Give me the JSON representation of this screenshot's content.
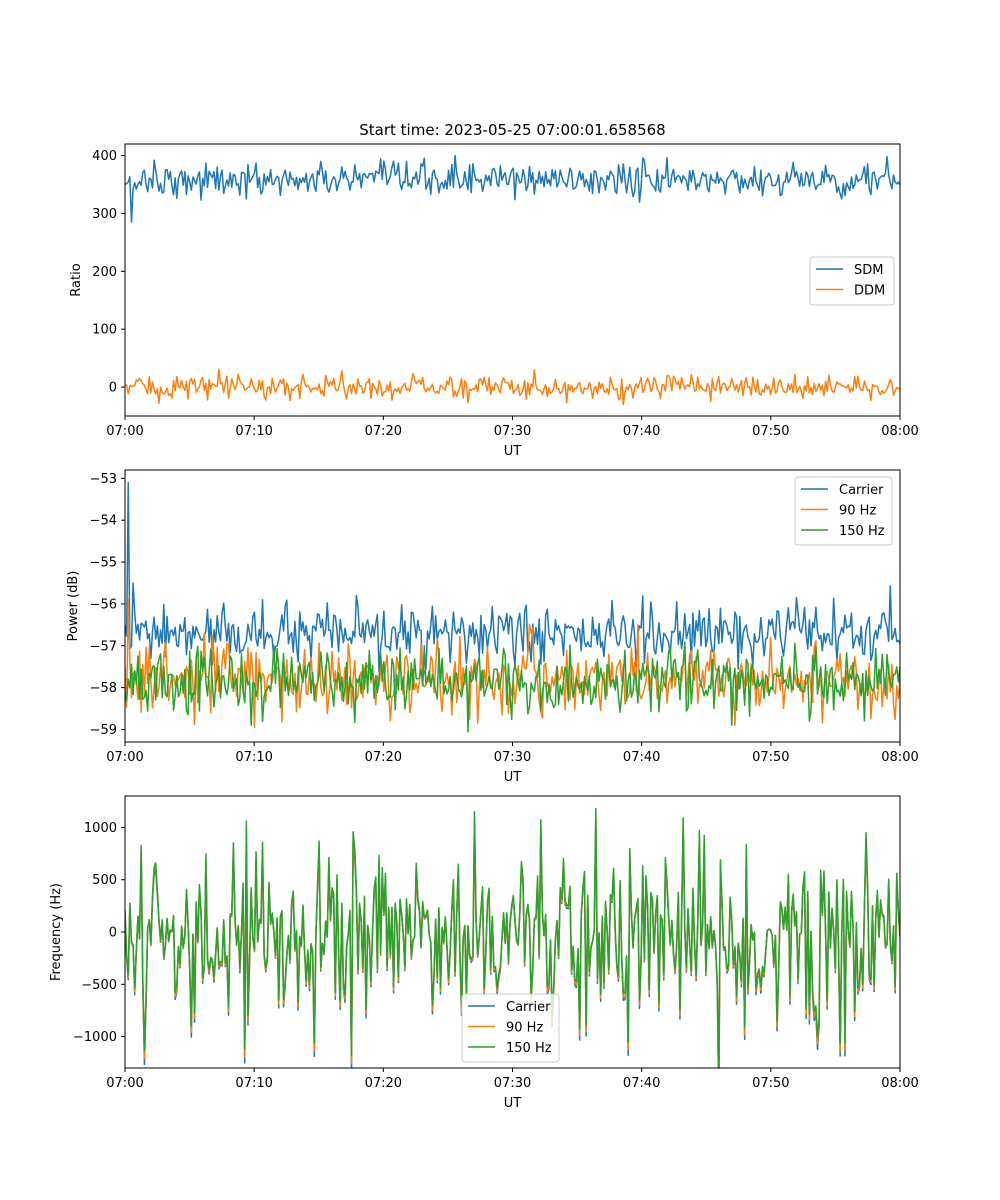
{
  "chart_data": [
    {
      "type": "line",
      "title": "Start time: 2023-05-25 07:00:01.658568",
      "xlabel": "UT",
      "ylabel": "Ratio",
      "xlim": [
        "07:00",
        "08:00"
      ],
      "ylim": [
        -50,
        420
      ],
      "xticks": [
        "07:00",
        "07:10",
        "07:20",
        "07:30",
        "07:40",
        "07:50",
        "08:00"
      ],
      "yticks": [
        0,
        100,
        200,
        300,
        400
      ],
      "ytick_labels": [
        "0",
        "100",
        "200",
        "300",
        "400"
      ],
      "legend_position": "center-right",
      "grid": false,
      "series": [
        {
          "name": "SDM",
          "color": "#1f77b4",
          "spikes": [
            [
              0.0,
              350
            ],
            [
              0.5,
              285
            ]
          ],
          "mean": 358,
          "amp": 14,
          "peaks": [
            [
              2.3,
              392
            ],
            [
              25.5,
              400
            ],
            [
              59.0,
              398
            ],
            [
              9.4,
              325
            ]
          ]
        },
        {
          "name": "DDM",
          "color": "#ff7f0e",
          "spikes": [],
          "mean": 0,
          "amp": 10,
          "peaks": [
            [
              16.8,
              28
            ],
            [
              38.6,
              -30
            ],
            [
              2.6,
              -28
            ]
          ]
        }
      ]
    },
    {
      "type": "line",
      "title": "",
      "xlabel": "UT",
      "ylabel": "Power (dB)",
      "xlim": [
        "07:00",
        "08:00"
      ],
      "ylim": [
        -59.3,
        -52.8
      ],
      "xticks": [
        "07:00",
        "07:10",
        "07:20",
        "07:30",
        "07:40",
        "07:50",
        "08:00"
      ],
      "yticks": [
        -59,
        -58,
        -57,
        -56,
        -55,
        -54,
        -53
      ],
      "ytick_labels": [
        "−59",
        "−58",
        "−57",
        "−56",
        "−55",
        "−54",
        "−53"
      ],
      "legend_position": "upper-right",
      "grid": false,
      "series": [
        {
          "name": "Carrier",
          "color": "#1f77b4",
          "spikes": [
            [
              0.0,
              -56.5
            ],
            [
              0.25,
              -55.0
            ],
            [
              0.3,
              -53.1
            ],
            [
              0.6,
              -55.5
            ],
            [
              0.9,
              -56.7
            ]
          ],
          "mean": -56.75,
          "amp": 0.32,
          "peaks": [
            [
              10.7,
              -55.9
            ],
            [
              52.0,
              -55.85
            ],
            [
              40.7,
              -55.95
            ]
          ]
        },
        {
          "name": "90 Hz",
          "color": "#ff7f0e",
          "spikes": [
            [
              0.0,
              -57.5
            ],
            [
              0.3,
              -55.9
            ],
            [
              0.7,
              -57.6
            ]
          ],
          "mean": -57.8,
          "amp": 0.4,
          "peaks": [
            [
              10.0,
              -58.95
            ],
            [
              27.3,
              -58.85
            ],
            [
              50.0,
              -56.8
            ]
          ]
        },
        {
          "name": "150 Hz",
          "color": "#2ca02c",
          "spikes": [],
          "mean": -57.85,
          "amp": 0.38,
          "peaks": [
            [
              47.0,
              -58.9
            ],
            [
              9.8,
              -58.9
            ]
          ]
        }
      ]
    },
    {
      "type": "line",
      "title": "",
      "xlabel": "UT",
      "ylabel": "Frequency (Hz)",
      "xlim": [
        "07:00",
        "08:00"
      ],
      "ylim": [
        -1300,
        1300
      ],
      "xticks": [
        "07:00",
        "07:10",
        "07:20",
        "07:30",
        "07:40",
        "07:50",
        "08:00"
      ],
      "yticks": [
        -1000,
        -500,
        0,
        500,
        1000
      ],
      "ytick_labels": [
        "−1000",
        "−500",
        "0",
        "500",
        "1000"
      ],
      "legend_position": "lower-center",
      "grid": false,
      "series": [
        {
          "name": "Carrier",
          "color": "#1f77b4",
          "offset": -70
        },
        {
          "name": "90 Hz",
          "color": "#ff7f0e",
          "offset": -40
        },
        {
          "name": "150 Hz",
          "color": "#2ca02c",
          "offset": 0
        }
      ],
      "mean": 0,
      "amp": 430,
      "peaks": [
        [
          17.5,
          1160
        ],
        [
          36.5,
          1180
        ],
        [
          27.0,
          1150
        ],
        [
          17.5,
          -1180
        ],
        [
          9.3,
          -1120
        ],
        [
          55.7,
          -1060
        ]
      ]
    }
  ]
}
